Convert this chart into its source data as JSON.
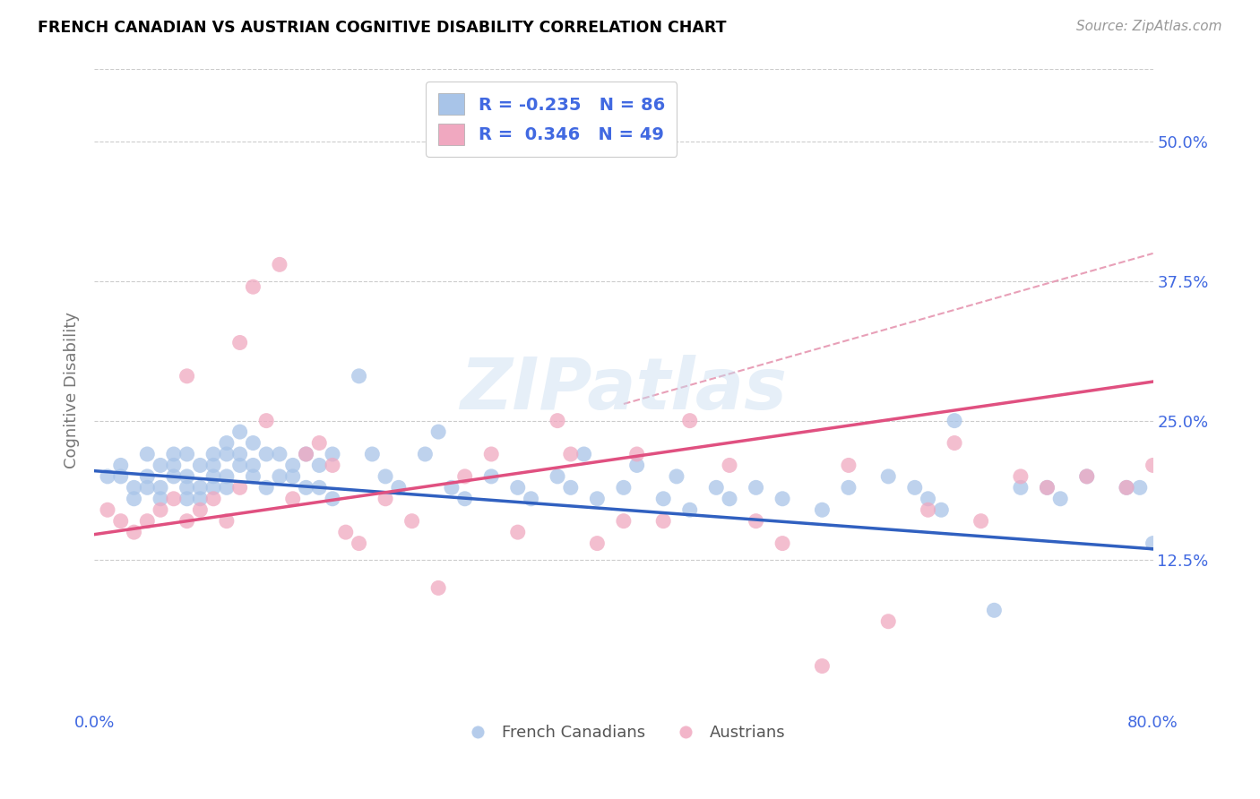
{
  "title": "FRENCH CANADIAN VS AUSTRIAN COGNITIVE DISABILITY CORRELATION CHART",
  "source": "Source: ZipAtlas.com",
  "ylabel": "Cognitive Disability",
  "ytick_labels": [
    "12.5%",
    "25.0%",
    "37.5%",
    "50.0%"
  ],
  "ytick_values": [
    0.125,
    0.25,
    0.375,
    0.5
  ],
  "xlim": [
    0.0,
    0.8
  ],
  "ylim": [
    -0.01,
    0.565
  ],
  "blue_R": -0.235,
  "blue_N": 86,
  "pink_R": 0.346,
  "pink_N": 49,
  "blue_color": "#A8C4E8",
  "pink_color": "#F0A8C0",
  "blue_line_color": "#3060C0",
  "pink_line_color": "#E05080",
  "dash_line_color": "#E8A0B8",
  "watermark": "ZIPatlas",
  "legend_text_color": "#4169E1",
  "tick_label_color": "#4169E1",
  "ylabel_color": "#777777",
  "grid_color": "#CCCCCC",
  "blue_scatter_x": [
    0.01,
    0.02,
    0.02,
    0.03,
    0.03,
    0.04,
    0.04,
    0.04,
    0.05,
    0.05,
    0.05,
    0.06,
    0.06,
    0.06,
    0.07,
    0.07,
    0.07,
    0.07,
    0.08,
    0.08,
    0.08,
    0.09,
    0.09,
    0.09,
    0.09,
    0.1,
    0.1,
    0.1,
    0.1,
    0.11,
    0.11,
    0.11,
    0.12,
    0.12,
    0.12,
    0.13,
    0.13,
    0.14,
    0.14,
    0.15,
    0.15,
    0.16,
    0.16,
    0.17,
    0.17,
    0.18,
    0.18,
    0.2,
    0.21,
    0.22,
    0.23,
    0.25,
    0.26,
    0.27,
    0.28,
    0.3,
    0.32,
    0.33,
    0.35,
    0.36,
    0.37,
    0.38,
    0.4,
    0.41,
    0.43,
    0.44,
    0.45,
    0.47,
    0.48,
    0.5,
    0.52,
    0.55,
    0.57,
    0.6,
    0.62,
    0.63,
    0.64,
    0.65,
    0.68,
    0.7,
    0.72,
    0.73,
    0.75,
    0.78,
    0.79,
    0.8
  ],
  "blue_scatter_y": [
    0.2,
    0.21,
    0.2,
    0.19,
    0.18,
    0.22,
    0.2,
    0.19,
    0.21,
    0.19,
    0.18,
    0.22,
    0.21,
    0.2,
    0.2,
    0.19,
    0.22,
    0.18,
    0.21,
    0.19,
    0.18,
    0.22,
    0.21,
    0.2,
    0.19,
    0.23,
    0.22,
    0.2,
    0.19,
    0.24,
    0.22,
    0.21,
    0.23,
    0.21,
    0.2,
    0.22,
    0.19,
    0.22,
    0.2,
    0.21,
    0.2,
    0.22,
    0.19,
    0.21,
    0.19,
    0.22,
    0.18,
    0.29,
    0.22,
    0.2,
    0.19,
    0.22,
    0.24,
    0.19,
    0.18,
    0.2,
    0.19,
    0.18,
    0.2,
    0.19,
    0.22,
    0.18,
    0.19,
    0.21,
    0.18,
    0.2,
    0.17,
    0.19,
    0.18,
    0.19,
    0.18,
    0.17,
    0.19,
    0.2,
    0.19,
    0.18,
    0.17,
    0.25,
    0.08,
    0.19,
    0.19,
    0.18,
    0.2,
    0.19,
    0.19,
    0.14
  ],
  "pink_scatter_x": [
    0.01,
    0.02,
    0.03,
    0.04,
    0.05,
    0.06,
    0.07,
    0.07,
    0.08,
    0.09,
    0.1,
    0.11,
    0.11,
    0.12,
    0.13,
    0.14,
    0.15,
    0.16,
    0.17,
    0.18,
    0.19,
    0.2,
    0.22,
    0.24,
    0.26,
    0.28,
    0.3,
    0.32,
    0.35,
    0.36,
    0.38,
    0.4,
    0.41,
    0.43,
    0.45,
    0.48,
    0.5,
    0.52,
    0.55,
    0.57,
    0.6,
    0.63,
    0.65,
    0.67,
    0.7,
    0.72,
    0.75,
    0.78,
    0.8
  ],
  "pink_scatter_y": [
    0.17,
    0.16,
    0.15,
    0.16,
    0.17,
    0.18,
    0.16,
    0.29,
    0.17,
    0.18,
    0.16,
    0.32,
    0.19,
    0.37,
    0.25,
    0.39,
    0.18,
    0.22,
    0.23,
    0.21,
    0.15,
    0.14,
    0.18,
    0.16,
    0.1,
    0.2,
    0.22,
    0.15,
    0.25,
    0.22,
    0.14,
    0.16,
    0.22,
    0.16,
    0.25,
    0.21,
    0.16,
    0.14,
    0.03,
    0.21,
    0.07,
    0.17,
    0.23,
    0.16,
    0.2,
    0.19,
    0.2,
    0.19,
    0.21
  ],
  "blue_trend_x0": 0.0,
  "blue_trend_y0": 0.205,
  "blue_trend_x1": 0.8,
  "blue_trend_y1": 0.135,
  "pink_trend_x0": 0.0,
  "pink_trend_y0": 0.148,
  "pink_trend_x1": 0.8,
  "pink_trend_y1": 0.285,
  "dash_trend_x0": 0.4,
  "dash_trend_y0": 0.265,
  "dash_trend_x1": 0.8,
  "dash_trend_y1": 0.4
}
